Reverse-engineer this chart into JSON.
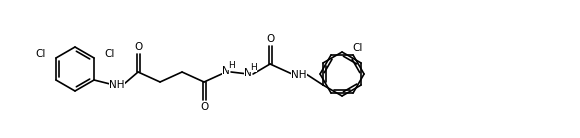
{
  "figsize": [
    5.8,
    1.38
  ],
  "dpi": 100,
  "bg_color": "#ffffff",
  "line_color": "#000000",
  "lw": 1.2,
  "fs": 7.5,
  "fs_small": 6.5,
  "xlim": [
    0,
    580
  ],
  "ylim": [
    0,
    138
  ]
}
